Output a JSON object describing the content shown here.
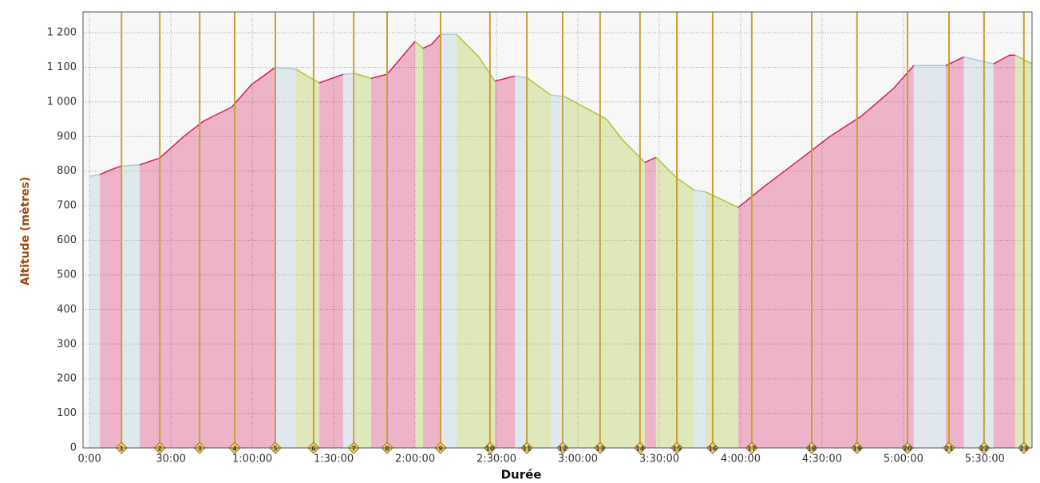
{
  "chart_data": {
    "type": "area",
    "xlabel": "Durée",
    "ylabel": "Altitude (mètres)",
    "x": [
      0,
      3.8,
      8.2,
      11.8,
      18.5,
      25.9,
      34.7,
      42.1,
      52.4,
      59.7,
      68.5,
      75.9,
      84.7,
      93.5,
      97.9,
      103.8,
      109.7,
      120.0,
      122.9,
      125.9,
      129.4,
      135.3,
      143.5,
      149.4,
      156.8,
      161.2,
      170.0,
      175.3,
      190.6,
      196.5,
      204.7,
      208.8,
      216.5,
      222.9,
      227.1,
      239.1,
      249.4,
      261.2,
      272.9,
      284.7,
      296.5,
      303.8,
      315.6,
      322.3,
      333.2,
      339.1,
      341.2,
      347.4
    ],
    "values": [
      785,
      790,
      805,
      815,
      818,
      838,
      900,
      945,
      985,
      1050,
      1100,
      1095,
      1055,
      1080,
      1082,
      1068,
      1080,
      1175,
      1155,
      1165,
      1195,
      1195,
      1130,
      1060,
      1075,
      1070,
      1020,
      1015,
      950,
      890,
      825,
      840,
      780,
      745,
      740,
      695,
      760,
      830,
      900,
      960,
      1040,
      1105,
      1105,
      1130,
      1110,
      1135,
      1135,
      1110
    ],
    "segment_colors": [
      "#a9c9d6",
      "#d81b60",
      "#d81b60",
      "#a9c9d6",
      "#d81b60",
      "#d81b60",
      "#d81b60",
      "#d81b60",
      "#d81b60",
      "#d81b60",
      "#a9c9d6",
      "#a8c832",
      "#d81b60",
      "#a9c9d6",
      "#a8c832",
      "#d81b60",
      "#d81b60",
      "#a8c832",
      "#d81b60",
      "#d81b60",
      "#a9c9d6",
      "#a8c832",
      "#a8c832",
      "#d81b60",
      "#a9c9d6",
      "#a8c832",
      "#a9c9d6",
      "#a8c832",
      "#a8c832",
      "#a8c832",
      "#d81b60",
      "#a8c832",
      "#a8c832",
      "#a9c9d6",
      "#a8c832",
      "#d81b60",
      "#d81b60",
      "#d81b60",
      "#d81b60",
      "#d81b60",
      "#d81b60",
      "#a9c9d6",
      "#d81b60",
      "#a9c9d6",
      "#d81b60",
      "#d81b60",
      "#a8c832"
    ],
    "markers": {
      "x": [
        11.8,
        25.9,
        40.6,
        53.5,
        68.5,
        82.6,
        97.4,
        109.7,
        129.4,
        147.6,
        161.2,
        174.4,
        188.2,
        202.9,
        216.5,
        229.7,
        244.1,
        266.2,
        282.9,
        301.5,
        316.8,
        329.7,
        344.4
      ],
      "labels": [
        "1",
        "2",
        "3",
        "4",
        "5",
        "6",
        "7",
        "8",
        "9",
        "10",
        "11",
        "12",
        "13",
        "14",
        "15",
        "16",
        "17",
        "18",
        "19",
        "20",
        "21",
        "22",
        "23"
      ]
    },
    "xlim": [
      -2.4,
      347.4
    ],
    "xticks": [
      {
        "value": 0,
        "label": "0:00"
      },
      {
        "value": 30,
        "label": "30:00"
      },
      {
        "value": 60,
        "label": "1:00:00"
      },
      {
        "value": 90,
        "label": "1:30:00"
      },
      {
        "value": 120,
        "label": "2:00:00"
      },
      {
        "value": 150,
        "label": "2:30:00"
      },
      {
        "value": 180,
        "label": "3:00:00"
      },
      {
        "value": 210,
        "label": "3:30:00"
      },
      {
        "value": 240,
        "label": "4:00:00"
      },
      {
        "value": 270,
        "label": "4:30:00"
      },
      {
        "value": 300,
        "label": "5:00:00"
      },
      {
        "value": 330,
        "label": "5:30:00"
      }
    ],
    "ylim": [
      0,
      1260
    ],
    "yticks": [
      0,
      100,
      200,
      300,
      400,
      500,
      600,
      700,
      800,
      900,
      {
        "value": 1000,
        "label": "1 000"
      },
      {
        "value": 1100,
        "label": "1 100"
      },
      {
        "value": 1200,
        "label": "1 200"
      }
    ],
    "grid": true
  }
}
